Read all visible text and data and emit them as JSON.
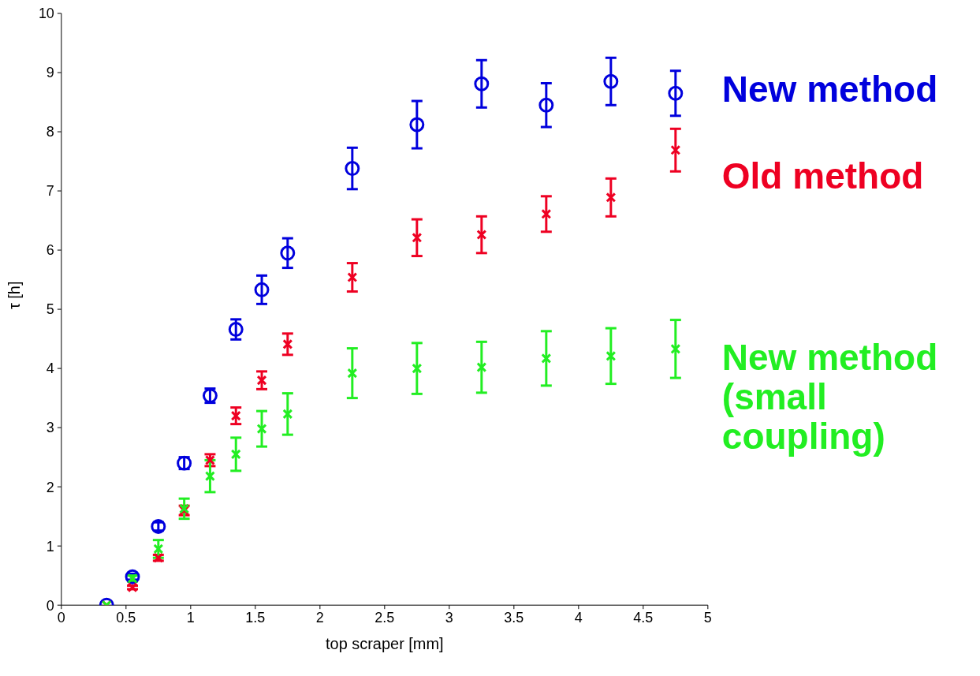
{
  "chart_data": {
    "type": "scatter",
    "xlabel": "top scraper [mm]",
    "ylabel": "τ [h]",
    "x": [
      0.35,
      0.55,
      0.75,
      0.95,
      1.15,
      1.35,
      1.55,
      1.75,
      2.25,
      2.75,
      3.25,
      3.75,
      4.25,
      4.75
    ],
    "series": [
      {
        "name": "New method",
        "color": "#0000dd",
        "marker": "circle",
        "values": [
          0,
          0.48,
          1.33,
          2.4,
          3.54,
          4.66,
          5.33,
          5.95,
          7.38,
          8.12,
          8.81,
          8.45,
          8.85,
          8.65
        ],
        "errors": [
          null,
          0.05,
          0.07,
          0.1,
          0.12,
          0.17,
          0.24,
          0.25,
          0.35,
          0.4,
          0.4,
          0.37,
          0.4,
          0.38
        ]
      },
      {
        "name": "Old method",
        "color": "#ee0022",
        "marker": "cross",
        "values": [
          0,
          0.3,
          0.8,
          1.6,
          2.45,
          3.2,
          3.8,
          4.41,
          5.54,
          6.21,
          6.26,
          6.61,
          6.89,
          7.69
        ],
        "errors": [
          null,
          0.03,
          0.05,
          0.08,
          0.1,
          0.14,
          0.15,
          0.18,
          0.24,
          0.31,
          0.31,
          0.3,
          0.32,
          0.36
        ]
      },
      {
        "name": "New method (small coupling)",
        "color": "#22ee22",
        "marker": "cross",
        "values": [
          0,
          0.45,
          0.95,
          1.63,
          2.18,
          2.55,
          2.98,
          3.23,
          3.92,
          4.0,
          4.02,
          4.17,
          4.21,
          4.33
        ],
        "errors": [
          null,
          0.05,
          0.15,
          0.17,
          0.27,
          0.28,
          0.3,
          0.35,
          0.42,
          0.43,
          0.43,
          0.46,
          0.47,
          0.49
        ]
      }
    ],
    "xlim": [
      0,
      5
    ],
    "xticks": [
      0,
      0.5,
      1,
      1.5,
      2,
      2.5,
      3,
      3.5,
      4,
      4.5,
      5
    ],
    "ylim": [
      0,
      10
    ],
    "yticks": [
      0,
      1,
      2,
      3,
      4,
      5,
      6,
      7,
      8,
      9,
      10
    ],
    "legend": "right"
  }
}
